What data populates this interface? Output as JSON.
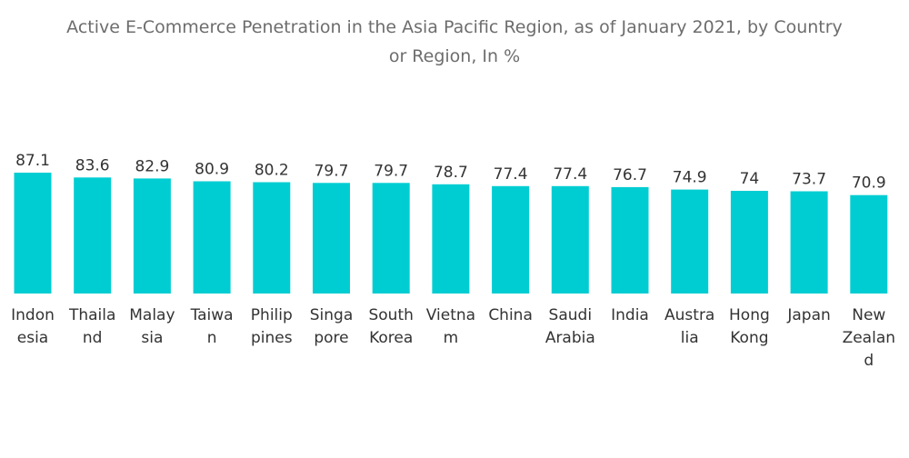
{
  "chart_data": {
    "type": "bar",
    "title": "Active E-Commerce Penetration in the Asia Pacific Region, as of January 2021, by Country or Region, In %",
    "title_lines": [
      "Active E-Commerce Penetration in the Asia Pacific Region, as of January 2021, by Country",
      "or Region, In %"
    ],
    "xlabel": "",
    "ylabel": "",
    "ylim": [
      0,
      100
    ],
    "grid": false,
    "bar_color": "#00cdd2",
    "categories": [
      "Indonesia",
      "Thailand",
      "Malaysia",
      "Taiwan",
      "Philippines",
      "Singapore",
      "South Korea",
      "Vietnam",
      "China",
      "Saudi Arabia",
      "India",
      "Australia",
      "Hong Kong",
      "Japan",
      "New Zealand"
    ],
    "category_label_lines": [
      [
        "Indon",
        "esia"
      ],
      [
        "Thaila",
        "nd"
      ],
      [
        "Malay",
        "sia"
      ],
      [
        "Taiwa",
        "n"
      ],
      [
        "Philip",
        "pines"
      ],
      [
        "Singa",
        "pore"
      ],
      [
        "South",
        "Korea"
      ],
      [
        "Vietna",
        "m"
      ],
      [
        "China"
      ],
      [
        "Saudi",
        "Arabia"
      ],
      [
        "India"
      ],
      [
        "Austra",
        "lia"
      ],
      [
        "Hong",
        "Kong"
      ],
      [
        "Japan"
      ],
      [
        "New",
        "Zealan",
        "d"
      ]
    ],
    "values": [
      87.1,
      83.6,
      82.9,
      80.9,
      80.2,
      79.7,
      79.7,
      78.7,
      77.4,
      77.4,
      76.7,
      74.9,
      74,
      73.7,
      70.9
    ],
    "value_labels": [
      "87.1",
      "83.6",
      "82.9",
      "80.9",
      "80.2",
      "79.7",
      "79.7",
      "78.7",
      "77.4",
      "77.4",
      "76.7",
      "74.9",
      "74",
      "73.7",
      "70.9"
    ]
  }
}
